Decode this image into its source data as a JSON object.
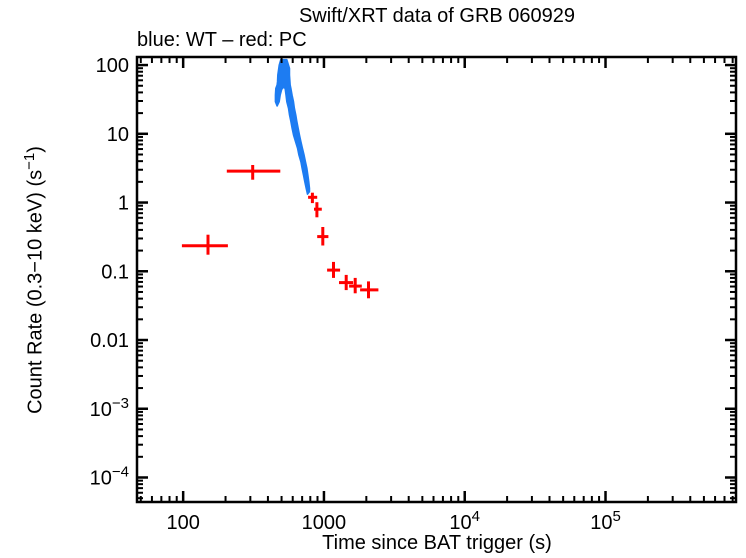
{
  "page": {
    "background": "#ffffff",
    "frame_color": "#000000"
  },
  "chart_data": {
    "type": "scatter",
    "title": "Swift/XRT data of GRB 060929",
    "legend": "blue: WT – red: PC",
    "xlabel": "Time since BAT trigger (s)",
    "ylabel": "Count Rate (0.3−10 keV) (s−1)",
    "ylabel_pre": "Count Rate (0.3−10 keV) (s",
    "ylabel_sup": "−1",
    "ylabel_post": ")",
    "xscale": "log",
    "yscale": "log",
    "grid": false,
    "legend_position": "top-left-above-frame",
    "xlim": [
      47,
      845000
    ],
    "ylim": [
      4.4e-05,
      131
    ],
    "x_ticks": [
      {
        "value": 100,
        "base": "100",
        "exp": ""
      },
      {
        "value": 1000,
        "base": "1000",
        "exp": ""
      },
      {
        "value": 10000,
        "base": "10",
        "exp": "4"
      },
      {
        "value": 100000,
        "base": "10",
        "exp": "5"
      }
    ],
    "y_ticks": [
      {
        "value": 100,
        "base": "100",
        "exp": ""
      },
      {
        "value": 10,
        "base": "10",
        "exp": ""
      },
      {
        "value": 1,
        "base": "1",
        "exp": ""
      },
      {
        "value": 0.1,
        "base": "0.1",
        "exp": ""
      },
      {
        "value": 0.01,
        "base": "0.01",
        "exp": ""
      },
      {
        "value": 0.001,
        "base": "10",
        "exp": "−3"
      },
      {
        "value": 0.0001,
        "base": "10",
        "exp": "−4"
      }
    ],
    "series": [
      {
        "name": "WT",
        "mode": "band",
        "color": "#1d7cf2",
        "polygon": [
          [
            494,
            120
          ],
          [
            481,
            100
          ],
          [
            470,
            71.6
          ],
          [
            468,
            57.2
          ],
          [
            465,
            51.2
          ],
          [
            455,
            45.8
          ],
          [
            452,
            36.6
          ],
          [
            452,
            29.3
          ],
          [
            465,
            25.4
          ],
          [
            481,
            29.3
          ],
          [
            489,
            36.6
          ],
          [
            501,
            44.3
          ],
          [
            515,
            47.4
          ],
          [
            530,
            45.8
          ],
          [
            538,
            36.6
          ],
          [
            545,
            29.3
          ],
          [
            560,
            23.5
          ],
          [
            569,
            18.8
          ],
          [
            582,
            15
          ],
          [
            594,
            12
          ],
          [
            608,
            9.6
          ],
          [
            628,
            7.7
          ],
          [
            649,
            6.2
          ],
          [
            664,
            4.9
          ],
          [
            686,
            3.9
          ],
          [
            700,
            3.15
          ],
          [
            716,
            2.5
          ],
          [
            731,
            2.0
          ],
          [
            748,
            1.6
          ],
          [
            764,
            1.32
          ],
          [
            789,
            1.44
          ],
          [
            789,
            1.61
          ],
          [
            781,
            2.0
          ],
          [
            769,
            2.5
          ],
          [
            757,
            3.15
          ],
          [
            740,
            3.9
          ],
          [
            723,
            4.9
          ],
          [
            703,
            6.2
          ],
          [
            686,
            7.7
          ],
          [
            670,
            9.6
          ],
          [
            656,
            12
          ],
          [
            643,
            15
          ],
          [
            631,
            18.8
          ],
          [
            617,
            23.5
          ],
          [
            608,
            29.3
          ],
          [
            594,
            36.6
          ],
          [
            582,
            45.8
          ],
          [
            576,
            51.2
          ],
          [
            569,
            71.6
          ],
          [
            569,
            89.6
          ],
          [
            545,
            120
          ]
        ]
      },
      {
        "name": "PC",
        "mode": "errorbar-cross",
        "color": "#ff0000",
        "points": [
          {
            "t": 150,
            "t_lo": 98,
            "t_hi": 208,
            "rate": 0.235,
            "rate_lo": 0.174,
            "rate_hi": 0.34
          },
          {
            "t": 312,
            "t_lo": 204,
            "t_hi": 490,
            "rate": 2.87,
            "rate_lo": 2.15,
            "rate_hi": 3.52
          },
          {
            "t": 828,
            "t_lo": 772,
            "t_hi": 895,
            "rate": 1.19,
            "rate_lo": 0.98,
            "rate_hi": 1.39
          },
          {
            "t": 891,
            "t_lo": 850,
            "t_hi": 965,
            "rate": 0.8,
            "rate_lo": 0.61,
            "rate_hi": 1.01
          },
          {
            "t": 982,
            "t_lo": 895,
            "t_hi": 1075,
            "rate": 0.32,
            "rate_lo": 0.237,
            "rate_hi": 0.44
          },
          {
            "t": 1169,
            "t_lo": 1053,
            "t_hi": 1303,
            "rate": 0.104,
            "rate_lo": 0.08,
            "rate_hi": 0.137
          },
          {
            "t": 1438,
            "t_lo": 1280,
            "t_hi": 1612,
            "rate": 0.0685,
            "rate_lo": 0.0532,
            "rate_hi": 0.0886
          },
          {
            "t": 1666,
            "t_lo": 1510,
            "t_hi": 1858,
            "rate": 0.0608,
            "rate_lo": 0.0478,
            "rate_hi": 0.08
          },
          {
            "t": 2071,
            "t_lo": 1807,
            "t_hi": 2438,
            "rate": 0.0536,
            "rate_lo": 0.0405,
            "rate_hi": 0.0712
          }
        ]
      }
    ]
  }
}
